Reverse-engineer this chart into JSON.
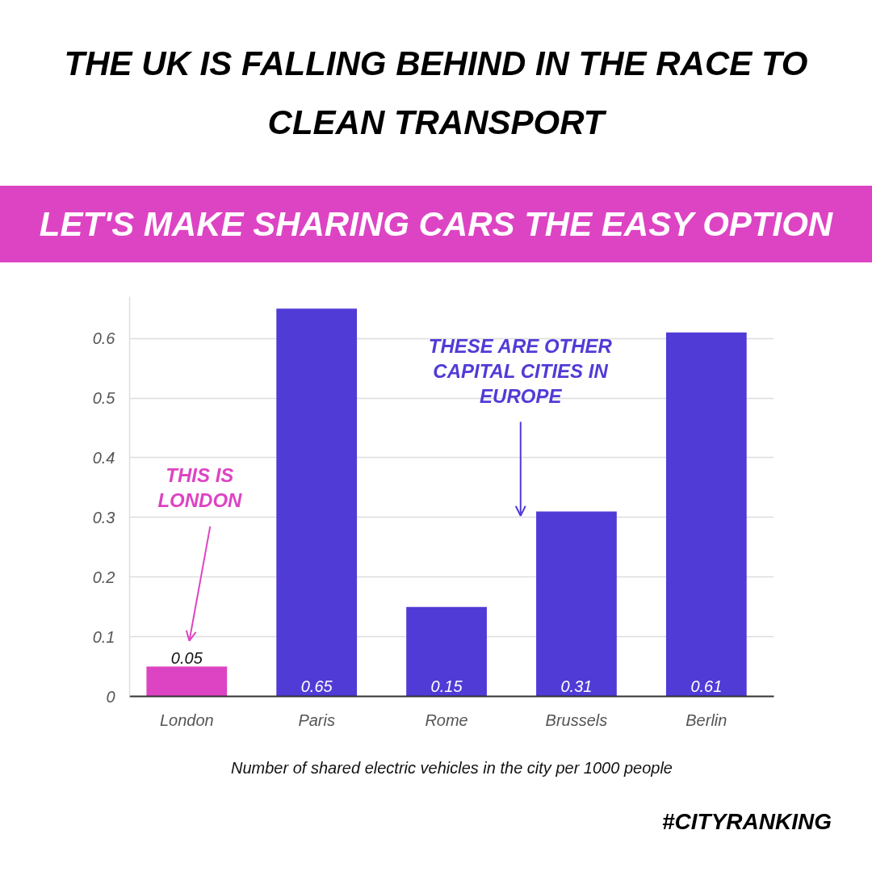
{
  "chart_data": {
    "type": "bar",
    "title": "THE UK IS FALLING BEHIND IN THE RACE TO CLEAN TRANSPORT",
    "subtitle": "LET'S MAKE SHARING CARS THE EASY OPTION",
    "xlabel": "Number of shared electric vehicles in the city per 1000 people",
    "categories": [
      "London",
      "Paris",
      "Rome",
      "Brussels",
      "Berlin"
    ],
    "values": [
      0.05,
      0.65,
      0.15,
      0.31,
      0.61
    ],
    "colors": [
      "#dd44c3",
      "#503bd7",
      "#503bd7",
      "#503bd7",
      "#503bd7"
    ],
    "ylim": [
      0,
      0.67
    ],
    "yticks": [
      0,
      0.1,
      0.2,
      0.3,
      0.4,
      0.5,
      0.6
    ],
    "grid": "y",
    "data_labels": true,
    "annotations": [
      "THIS IS LONDON",
      "THESE ARE OTHER CAPITAL CITIES IN EUROPE",
      "#CITYRANKING"
    ]
  }
}
